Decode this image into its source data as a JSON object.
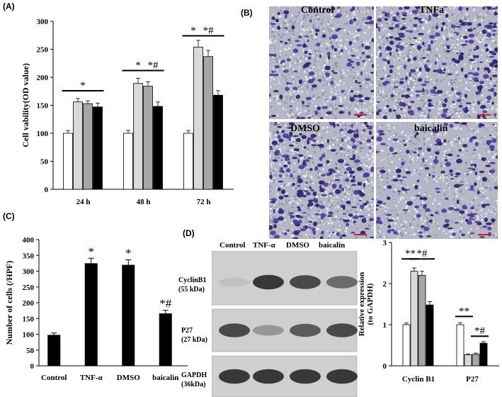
{
  "panel_labels": {
    "a": "(A)",
    "b": "(B)",
    "c": "(C)",
    "d": "(D)"
  },
  "chart_data": [
    {
      "id": "A",
      "type": "bar",
      "ylabel": "Cell vability(OD value)",
      "categories": [
        "24 h",
        "48 h",
        "72 h"
      ],
      "series": [
        {
          "values": [
            100,
            100,
            100
          ],
          "errors": [
            5,
            5,
            5
          ],
          "color": "#ffffff"
        },
        {
          "values": [
            156,
            189,
            254
          ],
          "errors": [
            6,
            9,
            12
          ],
          "color": "#d9d9d9"
        },
        {
          "values": [
            153,
            184,
            237
          ],
          "errors": [
            5,
            8,
            11
          ],
          "color": "#a6a6a6"
        },
        {
          "values": [
            147,
            148,
            168
          ],
          "errors": [
            7,
            8,
            8
          ],
          "color": "#000000"
        }
      ],
      "ylim": [
        0,
        300
      ],
      "yticks": [
        0,
        50,
        100,
        150,
        200,
        250,
        300
      ],
      "annotations": [
        {
          "text": "*",
          "category": 0,
          "from": 0,
          "to": 3,
          "y": 176
        },
        {
          "text": "*",
          "category": 1,
          "from": 0,
          "to": 2,
          "y": 212
        },
        {
          "text": "*#",
          "category": 1,
          "from": 2,
          "to": 3,
          "y": 212
        },
        {
          "text": "*",
          "category": 2,
          "from": 0,
          "to": 1,
          "y": 274
        },
        {
          "text": "*#",
          "category": 2,
          "from": 1,
          "to": 3,
          "y": 274
        }
      ]
    },
    {
      "id": "C",
      "type": "bar",
      "ylabel": "Number of cells (/HPF)",
      "categories": [
        "Control",
        "TNF-α",
        "DMSO",
        "baicalin"
      ],
      "values": [
        98,
        325,
        320,
        166
      ],
      "errors": [
        6,
        16,
        16,
        10
      ],
      "ylim": [
        0,
        400
      ],
      "yticks": [
        0,
        50,
        100,
        150,
        200,
        250,
        300,
        350,
        400
      ],
      "annotations": [
        "",
        "*",
        "*",
        "*#"
      ]
    },
    {
      "id": "D",
      "type": "bar",
      "ylabel": "Relative expression (to GAPDH)",
      "categories": [
        "Cyclin B1",
        "P27"
      ],
      "series": [
        {
          "values": [
            1.0,
            1.0
          ],
          "errors": [
            0.04,
            0.05
          ],
          "color": "#ffffff"
        },
        {
          "values": [
            2.3,
            0.27
          ],
          "errors": [
            0.08,
            0.02
          ],
          "color": "#d9d9d9"
        },
        {
          "values": [
            2.2,
            0.28
          ],
          "errors": [
            0.1,
            0.03
          ],
          "color": "#a6a6a6"
        },
        {
          "values": [
            1.48,
            0.55
          ],
          "errors": [
            0.08,
            0.04
          ],
          "color": "#000000"
        }
      ],
      "ylim": [
        0,
        3
      ],
      "yticks": [
        0,
        1,
        2,
        3
      ],
      "annotations": [
        {
          "text": "**",
          "category": 0,
          "from": 0,
          "to": 1,
          "y": 2.6
        },
        {
          "text": "*#",
          "category": 0,
          "from": 1,
          "to": 3,
          "y": 2.6
        },
        {
          "text": "**",
          "category": 1,
          "from": 0,
          "to": 1,
          "y": 1.2
        },
        {
          "text": "*#",
          "category": 1,
          "from": 2,
          "to": 3,
          "y": 0.72
        }
      ]
    }
  ],
  "micrographs": [
    {
      "title": "Control"
    },
    {
      "title": "TNFa"
    },
    {
      "title": "DMSO"
    },
    {
      "title": "baicalin"
    }
  ],
  "blot": {
    "columns": [
      "Control",
      "TNF-α",
      "DMSO",
      "baicalin"
    ],
    "rows": [
      {
        "label_line1": "CyclinB1",
        "label_line2": "(55 kDa)",
        "bands": [
          0.05,
          0.85,
          0.75,
          0.55
        ]
      },
      {
        "label_line1": "P27",
        "label_line2": "(27 kDa)",
        "bands": [
          0.75,
          0.3,
          0.65,
          0.75
        ]
      },
      {
        "label_line1": "GAPDH",
        "label_line2": "(36kDa)",
        "bands": [
          0.85,
          0.85,
          0.85,
          0.85
        ]
      }
    ]
  }
}
